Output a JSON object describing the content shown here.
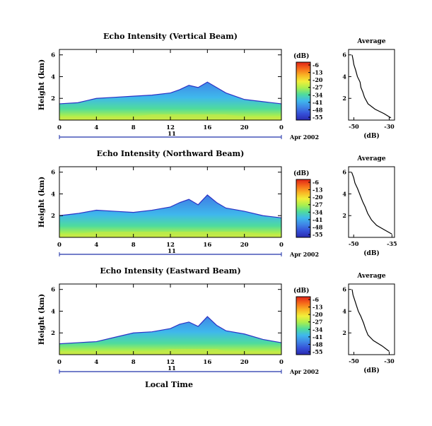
{
  "figure": {
    "x_axis_label": "Local Time",
    "date_label": "Apr 2002",
    "day_label": "11",
    "colorbar_unit": "(dB)",
    "colorbar_ticks": [
      "-6",
      "-13",
      "-20",
      "-27",
      "-34",
      "-41",
      "-48",
      "-55"
    ],
    "colorbar_colors": [
      "#e02418",
      "#f66a1a",
      "#f9b324",
      "#f2ef3a",
      "#a9ef4f",
      "#4fdc9c",
      "#3fb8ec",
      "#3f86e6",
      "#3550d8",
      "#2a2ab0"
    ],
    "panel_background": "#ffffff",
    "average_title": "Average"
  },
  "chart_data": [
    {
      "type": "heatmap",
      "title": "Echo Intensity (Vertical Beam)",
      "ylabel": "Height (km)",
      "xlabel": "Local Time",
      "x_ticks": [
        "0",
        "4",
        "8",
        "12",
        "16",
        "20",
        "0"
      ],
      "y_ticks": [
        "6",
        "4",
        "2"
      ],
      "xlim": [
        0,
        24
      ],
      "ylim": [
        0,
        6.5
      ],
      "colorbar_range_db": [
        -55,
        -6
      ],
      "echo_top_km": [
        [
          0,
          1.5
        ],
        [
          2,
          1.6
        ],
        [
          4,
          2.0
        ],
        [
          6,
          2.1
        ],
        [
          8,
          2.2
        ],
        [
          10,
          2.3
        ],
        [
          12,
          2.5
        ],
        [
          13,
          2.8
        ],
        [
          14,
          3.2
        ],
        [
          15,
          3.0
        ],
        [
          16,
          3.5
        ],
        [
          17,
          3.0
        ],
        [
          18,
          2.5
        ],
        [
          20,
          1.9
        ],
        [
          22,
          1.7
        ],
        [
          24,
          1.5
        ]
      ],
      "average_profile": {
        "title": "Average",
        "xlabel": "(dB)",
        "x_ticks": [
          "-50",
          "-30"
        ],
        "y_ticks": [
          "6",
          "4",
          "2"
        ],
        "xlim": [
          -53,
          -27
        ],
        "ylim": [
          0,
          6.5
        ],
        "points": [
          [
            -29,
            0.2
          ],
          [
            -33,
            0.6
          ],
          [
            -38,
            1.0
          ],
          [
            -42,
            1.5
          ],
          [
            -44,
            2.1
          ],
          [
            -45,
            2.6
          ],
          [
            -46,
            3.0
          ],
          [
            -46.5,
            3.5
          ],
          [
            -48,
            4.0
          ],
          [
            -49,
            4.6
          ],
          [
            -50,
            5.1
          ],
          [
            -50.5,
            5.6
          ],
          [
            -51,
            6.0
          ]
        ]
      }
    },
    {
      "type": "heatmap",
      "title": "Echo Intensity (Northward Beam)",
      "ylabel": "Height (km)",
      "xlabel": "Local Time",
      "x_ticks": [
        "0",
        "4",
        "8",
        "12",
        "16",
        "20",
        "0"
      ],
      "y_ticks": [
        "6",
        "4",
        "2"
      ],
      "xlim": [
        0,
        24
      ],
      "ylim": [
        0,
        6.5
      ],
      "colorbar_range_db": [
        -55,
        -6
      ],
      "echo_top_km": [
        [
          0,
          2.0
        ],
        [
          2,
          2.2
        ],
        [
          4,
          2.5
        ],
        [
          6,
          2.4
        ],
        [
          8,
          2.3
        ],
        [
          10,
          2.5
        ],
        [
          12,
          2.8
        ],
        [
          13,
          3.2
        ],
        [
          14,
          3.5
        ],
        [
          15,
          3.0
        ],
        [
          16,
          3.9
        ],
        [
          17,
          3.2
        ],
        [
          18,
          2.7
        ],
        [
          20,
          2.4
        ],
        [
          22,
          2.0
        ],
        [
          24,
          1.8
        ]
      ],
      "average_profile": {
        "title": "Average",
        "xlabel": "(dB)",
        "x_ticks": [
          "-50",
          "-35"
        ],
        "y_ticks": [
          "6",
          "4",
          "2"
        ],
        "xlim": [
          -52,
          -34
        ],
        "ylim": [
          0,
          6.5
        ],
        "points": [
          [
            -35,
            0.3
          ],
          [
            -38,
            0.7
          ],
          [
            -41,
            1.1
          ],
          [
            -43,
            1.6
          ],
          [
            -44.5,
            2.2
          ],
          [
            -45.5,
            2.8
          ],
          [
            -46.5,
            3.3
          ],
          [
            -47.5,
            3.9
          ],
          [
            -48.5,
            4.5
          ],
          [
            -49.5,
            5.0
          ],
          [
            -50,
            5.5
          ],
          [
            -50.8,
            6.0
          ]
        ]
      }
    },
    {
      "type": "heatmap",
      "title": "Echo Intensity (Eastward Beam)",
      "ylabel": "Height (km)",
      "xlabel": "Local Time",
      "x_ticks": [
        "0",
        "4",
        "8",
        "12",
        "16",
        "20",
        "0"
      ],
      "y_ticks": [
        "6",
        "4",
        "2"
      ],
      "xlim": [
        0,
        24
      ],
      "ylim": [
        0,
        6.5
      ],
      "colorbar_range_db": [
        -55,
        -6
      ],
      "echo_top_km": [
        [
          0,
          1.0
        ],
        [
          2,
          1.1
        ],
        [
          4,
          1.2
        ],
        [
          6,
          1.6
        ],
        [
          8,
          2.0
        ],
        [
          10,
          2.1
        ],
        [
          12,
          2.4
        ],
        [
          13,
          2.8
        ],
        [
          14,
          3.0
        ],
        [
          15,
          2.6
        ],
        [
          16,
          3.5
        ],
        [
          17,
          2.7
        ],
        [
          18,
          2.2
        ],
        [
          20,
          1.9
        ],
        [
          22,
          1.4
        ],
        [
          24,
          1.1
        ]
      ],
      "average_profile": {
        "title": "Average",
        "xlabel": "(dB)",
        "x_ticks": [
          "-50",
          "-30"
        ],
        "y_ticks": [
          "6",
          "4",
          "2"
        ],
        "xlim": [
          -53,
          -27
        ],
        "ylim": [
          0,
          6.5
        ],
        "points": [
          [
            -30,
            0.3
          ],
          [
            -34,
            0.8
          ],
          [
            -39,
            1.3
          ],
          [
            -42,
            1.8
          ],
          [
            -43.5,
            2.4
          ],
          [
            -44.5,
            2.9
          ],
          [
            -46,
            3.5
          ],
          [
            -47.5,
            4.0
          ],
          [
            -48.5,
            4.5
          ],
          [
            -49.5,
            5.0
          ],
          [
            -50.5,
            5.5
          ],
          [
            -51,
            6.0
          ]
        ]
      }
    }
  ]
}
